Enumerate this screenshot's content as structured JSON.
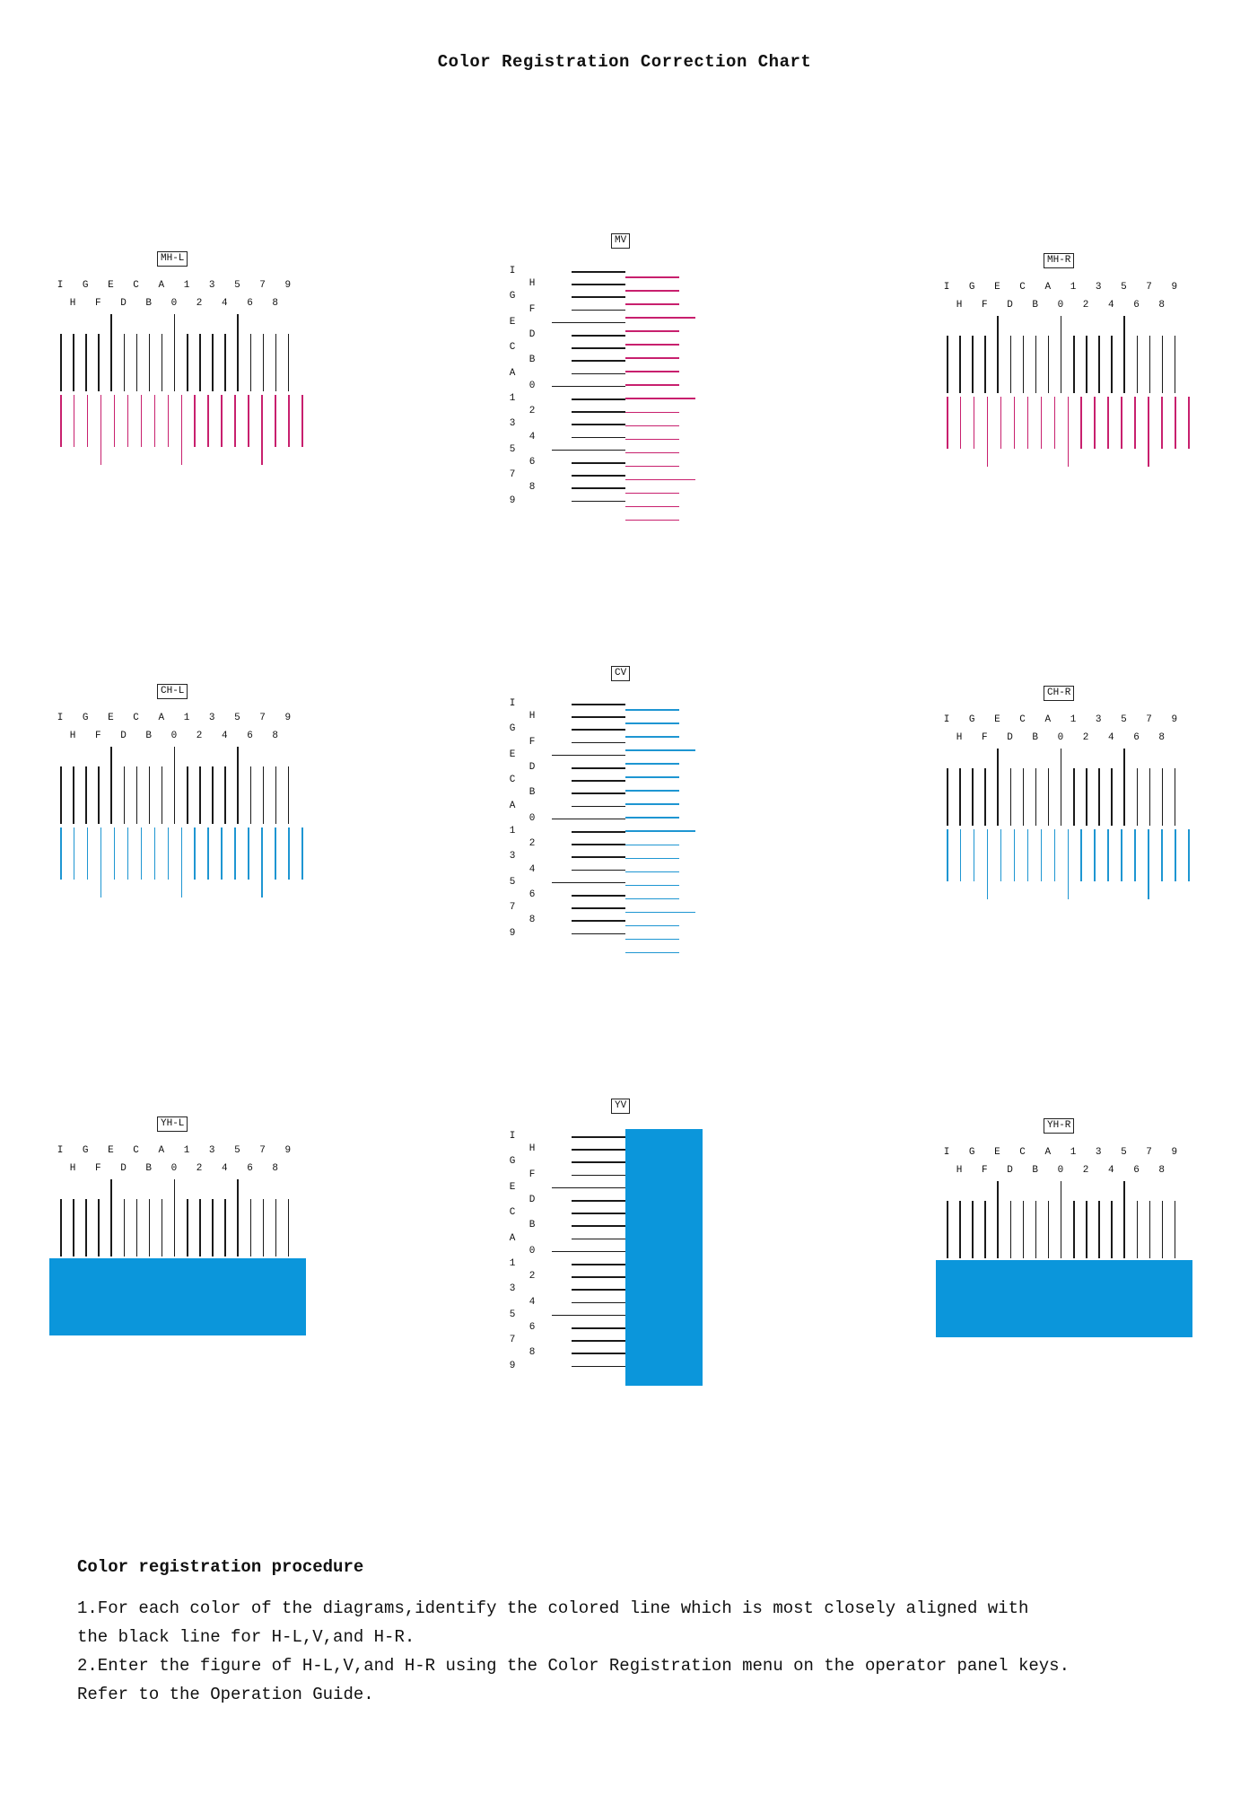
{
  "title": "Color Registration Correction Chart",
  "colors": {
    "black": "#1a1a1a",
    "magenta": "#c8206e",
    "cyan": "#1e96d2",
    "yellow_block": "#0b96db"
  },
  "scale": {
    "h_top": [
      "I",
      "G",
      "E",
      "C",
      "A",
      "1",
      "3",
      "5",
      "7",
      "9"
    ],
    "h_bottom": [
      "H",
      "F",
      "D",
      "B",
      "0",
      "2",
      "4",
      "6",
      "8"
    ],
    "v_left": [
      "I",
      "G",
      "E",
      "C",
      "A",
      "1",
      "3",
      "5",
      "7",
      "9"
    ],
    "v_right": [
      "H",
      "F",
      "D",
      "B",
      "0",
      "2",
      "4",
      "6",
      "8"
    ]
  },
  "diagrams": [
    {
      "label": "MH-L",
      "kind": "H",
      "color": "magenta"
    },
    {
      "label": "MV",
      "kind": "V",
      "color": "magenta"
    },
    {
      "label": "MH-R",
      "kind": "H",
      "color": "magenta"
    },
    {
      "label": "CH-L",
      "kind": "H",
      "color": "cyan"
    },
    {
      "label": "CV",
      "kind": "V",
      "color": "cyan"
    },
    {
      "label": "CH-R",
      "kind": "H",
      "color": "cyan"
    },
    {
      "label": "YH-L",
      "kind": "H",
      "color": "yellow"
    },
    {
      "label": "YV",
      "kind": "V",
      "color": "yellow"
    },
    {
      "label": "YH-R",
      "kind": "H",
      "color": "yellow"
    }
  ],
  "procedure": {
    "heading": "Color registration procedure",
    "step1_line1": "1.For each color of the diagrams,identify the colored line which is most closely aligned with",
    "step1_line2": "the black line for H-L,V,and H-R.",
    "step2_line1": "2.Enter the figure of H-L,V,and H-R using the Color Registration menu on the operator panel keys.",
    "step2_line2": "Refer to the Operation Guide."
  }
}
